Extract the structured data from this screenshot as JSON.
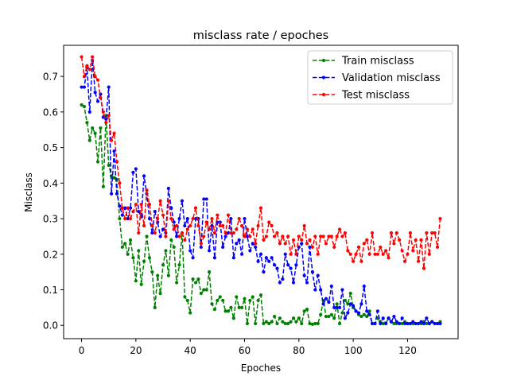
{
  "chart_data": {
    "type": "line",
    "title": "misclass rate / epoches",
    "xlabel": "Epoches",
    "ylabel": "Misclass",
    "xlim": [
      -6.6,
      138.6
    ],
    "ylim": [
      -0.0375,
      0.7875
    ],
    "xticks": [
      0,
      20,
      40,
      60,
      80,
      100,
      120
    ],
    "yticks": [
      0.0,
      0.1,
      0.2,
      0.3,
      0.4,
      0.5,
      0.6,
      0.7
    ],
    "ytick_labels": [
      "0.0",
      "0.1",
      "0.2",
      "0.3",
      "0.4",
      "0.5",
      "0.6",
      "0.7"
    ],
    "grid": false,
    "legend_position": "top-right",
    "x": [
      0,
      1,
      2,
      3,
      4,
      5,
      6,
      7,
      8,
      9,
      10,
      11,
      12,
      13,
      14,
      15,
      16,
      17,
      18,
      19,
      20,
      21,
      22,
      23,
      24,
      25,
      26,
      27,
      28,
      29,
      30,
      31,
      32,
      33,
      34,
      35,
      36,
      37,
      38,
      39,
      40,
      41,
      42,
      43,
      44,
      45,
      46,
      47,
      48,
      49,
      50,
      51,
      52,
      53,
      54,
      55,
      56,
      57,
      58,
      59,
      60,
      61,
      62,
      63,
      64,
      65,
      66,
      67,
      68,
      69,
      70,
      71,
      72,
      73,
      74,
      75,
      76,
      77,
      78,
      79,
      80,
      81,
      82,
      83,
      84,
      85,
      86,
      87,
      88,
      89,
      90,
      91,
      92,
      93,
      94,
      95,
      96,
      97,
      98,
      99,
      100,
      101,
      102,
      103,
      104,
      105,
      106,
      107,
      108,
      109,
      110,
      111,
      112,
      113,
      114,
      115,
      116,
      117,
      118,
      119,
      120,
      121,
      122,
      123,
      124,
      125,
      126,
      127,
      128,
      129,
      130,
      131,
      132
    ],
    "series": [
      {
        "name": "Train misclass",
        "color": "#008000",
        "marker": "circle",
        "linestyle": "dashed",
        "values": [
          0.62,
          0.615,
          0.57,
          0.52,
          0.555,
          0.54,
          0.46,
          0.555,
          0.39,
          0.59,
          0.45,
          0.42,
          0.415,
          0.41,
          0.3,
          0.22,
          0.23,
          0.2,
          0.24,
          0.19,
          0.125,
          0.21,
          0.115,
          0.18,
          0.25,
          0.19,
          0.15,
          0.05,
          0.14,
          0.09,
          0.17,
          0.21,
          0.14,
          0.24,
          0.22,
          0.12,
          0.17,
          0.26,
          0.08,
          0.07,
          0.035,
          0.13,
          0.12,
          0.13,
          0.09,
          0.1,
          0.1,
          0.15,
          0.06,
          0.045,
          0.07,
          0.08,
          0.07,
          0.04,
          0.04,
          0.05,
          0.02,
          0.08,
          0.05,
          0.05,
          0.075,
          0.005,
          0.07,
          0.08,
          0.005,
          0.07,
          0.085,
          0.005,
          0.01,
          0.005,
          0.01,
          0.025,
          0.005,
          0.02,
          0.01,
          0.005,
          0.005,
          0.01,
          0.02,
          0.01,
          0.02,
          0.005,
          0.04,
          0.045,
          0.005,
          0.003,
          0.005,
          0.005,
          0.03,
          0.07,
          0.025,
          0.025,
          0.03,
          0.02,
          0.06,
          0.005,
          0.035,
          0.07,
          0.06,
          0.09,
          0.05,
          0.04,
          0.03,
          0.025,
          0.03,
          0.025,
          0.04,
          0.005,
          0.005,
          0.02,
          0.01,
          0.005,
          0.005,
          0.02,
          0.01,
          0.005,
          0.005,
          0.005,
          0.005,
          0.01,
          0.005,
          0.005,
          0.005,
          0.005,
          0.005,
          0.005,
          0.01,
          0.005,
          0.005,
          0.01,
          0.005,
          0.005,
          0.01
        ]
      },
      {
        "name": "Validation misclass",
        "color": "#0000ff",
        "marker": "circle",
        "linestyle": "dashed",
        "values": [
          0.67,
          0.67,
          0.725,
          0.6,
          0.745,
          0.655,
          0.63,
          0.65,
          0.585,
          0.58,
          0.67,
          0.37,
          0.49,
          0.37,
          0.335,
          0.31,
          0.33,
          0.3,
          0.33,
          0.43,
          0.44,
          0.32,
          0.305,
          0.42,
          0.37,
          0.3,
          0.26,
          0.32,
          0.29,
          0.25,
          0.27,
          0.26,
          0.385,
          0.33,
          0.29,
          0.25,
          0.3,
          0.35,
          0.28,
          0.3,
          0.21,
          0.19,
          0.3,
          0.3,
          0.22,
          0.355,
          0.355,
          0.21,
          0.28,
          0.19,
          0.29,
          0.29,
          0.22,
          0.25,
          0.26,
          0.3,
          0.19,
          0.23,
          0.24,
          0.2,
          0.3,
          0.25,
          0.21,
          0.23,
          0.22,
          0.18,
          0.2,
          0.15,
          0.19,
          0.18,
          0.19,
          0.17,
          0.16,
          0.12,
          0.13,
          0.2,
          0.17,
          0.16,
          0.12,
          0.17,
          0.22,
          0.23,
          0.14,
          0.12,
          0.22,
          0.15,
          0.1,
          0.14,
          0.1,
          0.06,
          0.075,
          0.065,
          0.11,
          0.05,
          0.05,
          0.05,
          0.1,
          0.02,
          0.035,
          0.06,
          0.055,
          0.04,
          0.035,
          0.06,
          0.11,
          0.04,
          0.03,
          0.005,
          0.005,
          0.04,
          0.005,
          0.02,
          0.005,
          0.02,
          0.01,
          0.025,
          0.01,
          0.005,
          0.02,
          0.005,
          0.005,
          0.005,
          0.01,
          0.005,
          0.005,
          0.01,
          0.005,
          0.02,
          0.005,
          0.01,
          0.005,
          0.005,
          0.005
        ]
      },
      {
        "name": "Test misclass",
        "color": "#ff0000",
        "marker": "circle",
        "linestyle": "dashed",
        "values": [
          0.755,
          0.7,
          0.73,
          0.72,
          0.755,
          0.7,
          0.69,
          0.64,
          0.6,
          0.57,
          0.59,
          0.52,
          0.54,
          0.46,
          0.4,
          0.33,
          0.3,
          0.33,
          0.3,
          0.32,
          0.34,
          0.26,
          0.34,
          0.28,
          0.38,
          0.34,
          0.28,
          0.26,
          0.3,
          0.35,
          0.31,
          0.25,
          0.35,
          0.3,
          0.27,
          0.28,
          0.25,
          0.26,
          0.24,
          0.27,
          0.28,
          0.3,
          0.33,
          0.28,
          0.23,
          0.25,
          0.29,
          0.27,
          0.3,
          0.26,
          0.31,
          0.28,
          0.28,
          0.26,
          0.31,
          0.26,
          0.26,
          0.27,
          0.3,
          0.28,
          0.25,
          0.27,
          0.25,
          0.27,
          0.23,
          0.28,
          0.33,
          0.24,
          0.25,
          0.29,
          0.28,
          0.25,
          0.26,
          0.23,
          0.25,
          0.23,
          0.25,
          0.2,
          0.24,
          0.2,
          0.25,
          0.24,
          0.28,
          0.23,
          0.24,
          0.22,
          0.25,
          0.2,
          0.25,
          0.25,
          0.23,
          0.25,
          0.25,
          0.22,
          0.25,
          0.27,
          0.25,
          0.26,
          0.21,
          0.2,
          0.18,
          0.2,
          0.22,
          0.18,
          0.23,
          0.24,
          0.2,
          0.26,
          0.2,
          0.2,
          0.22,
          0.2,
          0.21,
          0.19,
          0.26,
          0.23,
          0.26,
          0.24,
          0.21,
          0.18,
          0.2,
          0.26,
          0.21,
          0.24,
          0.18,
          0.24,
          0.16,
          0.26,
          0.2,
          0.26,
          0.26,
          0.22,
          0.3
        ]
      }
    ]
  }
}
